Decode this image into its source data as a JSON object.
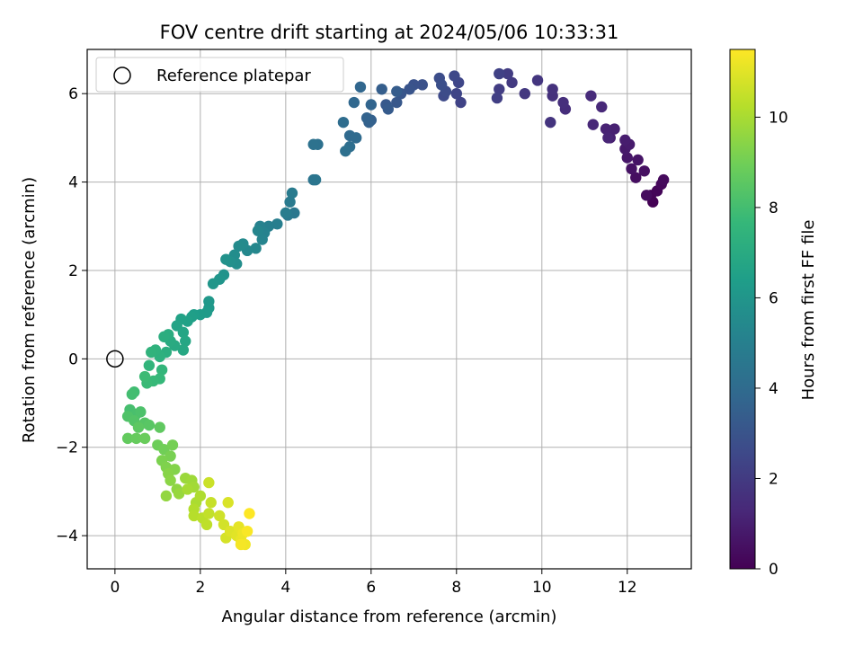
{
  "chart_data": {
    "type": "scatter",
    "title": "FOV centre drift starting at 2024/05/06 10:33:31",
    "xlabel": "Angular distance from reference (arcmin)",
    "ylabel": "Rotation from reference (arcmin)",
    "xlim": [
      -0.65,
      13.5
    ],
    "ylim": [
      -4.75,
      7.0
    ],
    "xticks": [
      0,
      2,
      4,
      6,
      8,
      10,
      12
    ],
    "yticks": [
      -4,
      -2,
      0,
      2,
      4,
      6
    ],
    "grid": true,
    "legend": {
      "placement": "top-left",
      "entries": [
        {
          "label": "Reference platepar",
          "marker": "open-circle"
        }
      ]
    },
    "reference_point": {
      "x": 0,
      "y": 0
    },
    "colorbar": {
      "label": "Hours from first FF file",
      "colormap": "viridis",
      "range": [
        0,
        11.5
      ],
      "ticks": [
        0,
        2,
        4,
        6,
        8,
        10
      ]
    },
    "colormap_stops": [
      "#440154",
      "#482878",
      "#3e4989",
      "#31688e",
      "#26828e",
      "#1f9e89",
      "#35b779",
      "#6ece58",
      "#b5de2b",
      "#fde725"
    ],
    "series": [
      {
        "points": [
          [
            12.6,
            3.55
          ],
          [
            12.55,
            3.7
          ],
          [
            12.7,
            3.8
          ],
          [
            12.8,
            3.95
          ],
          [
            12.85,
            4.05
          ],
          [
            12.45,
            3.7
          ],
          [
            12.2,
            4.1
          ],
          [
            12.4,
            4.25
          ],
          [
            12.1,
            4.3
          ],
          [
            12.25,
            4.5
          ],
          [
            12.0,
            4.55
          ],
          [
            11.95,
            4.75
          ],
          [
            12.05,
            4.85
          ],
          [
            11.95,
            4.95
          ],
          [
            11.6,
            5.0
          ],
          [
            11.7,
            5.2
          ],
          [
            11.5,
            5.2
          ],
          [
            11.55,
            5.0
          ],
          [
            11.2,
            5.3
          ],
          [
            11.4,
            5.7
          ],
          [
            11.15,
            5.95
          ],
          [
            10.55,
            5.65
          ],
          [
            10.5,
            5.8
          ],
          [
            10.25,
            5.95
          ],
          [
            10.25,
            6.1
          ],
          [
            10.2,
            5.35
          ],
          [
            9.9,
            6.3
          ],
          [
            9.6,
            6.0
          ],
          [
            9.3,
            6.25
          ],
          [
            9.2,
            6.45
          ],
          [
            9.0,
            6.1
          ],
          [
            8.95,
            5.9
          ],
          [
            9.0,
            6.45
          ],
          [
            8.1,
            5.8
          ],
          [
            8.0,
            6.0
          ],
          [
            8.05,
            6.25
          ],
          [
            7.95,
            6.4
          ],
          [
            7.7,
            5.95
          ],
          [
            7.75,
            6.05
          ],
          [
            7.6,
            6.35
          ],
          [
            7.65,
            6.2
          ],
          [
            7.2,
            6.2
          ],
          [
            7.0,
            6.2
          ],
          [
            6.9,
            6.1
          ],
          [
            6.7,
            6.0
          ],
          [
            6.6,
            5.8
          ],
          [
            6.35,
            5.75
          ],
          [
            6.4,
            5.65
          ],
          [
            6.6,
            6.05
          ],
          [
            6.25,
            6.1
          ],
          [
            6.0,
            5.4
          ],
          [
            5.95,
            5.35
          ],
          [
            5.9,
            5.45
          ],
          [
            6.0,
            5.75
          ],
          [
            5.75,
            6.15
          ],
          [
            5.6,
            5.8
          ],
          [
            5.5,
            5.05
          ],
          [
            5.65,
            5.0
          ],
          [
            5.35,
            5.35
          ],
          [
            5.5,
            4.8
          ],
          [
            5.4,
            4.7
          ],
          [
            4.75,
            4.85
          ],
          [
            4.65,
            4.85
          ],
          [
            4.65,
            4.05
          ],
          [
            4.7,
            4.05
          ],
          [
            4.2,
            3.3
          ],
          [
            4.05,
            3.25
          ],
          [
            4.1,
            3.55
          ],
          [
            4.15,
            3.75
          ],
          [
            4.0,
            3.3
          ],
          [
            3.8,
            3.05
          ],
          [
            3.6,
            3.0
          ],
          [
            3.4,
            3.0
          ],
          [
            3.5,
            2.85
          ],
          [
            3.45,
            2.7
          ],
          [
            3.35,
            2.9
          ],
          [
            3.3,
            2.5
          ],
          [
            3.1,
            2.45
          ],
          [
            3.0,
            2.6
          ],
          [
            2.9,
            2.55
          ],
          [
            2.8,
            2.35
          ],
          [
            2.85,
            2.15
          ],
          [
            2.7,
            2.2
          ],
          [
            2.6,
            2.25
          ],
          [
            2.55,
            1.9
          ],
          [
            2.45,
            1.8
          ],
          [
            2.3,
            1.7
          ],
          [
            2.2,
            1.3
          ],
          [
            2.2,
            1.15
          ],
          [
            2.15,
            1.05
          ],
          [
            2.0,
            1.0
          ],
          [
            1.85,
            1.0
          ],
          [
            1.8,
            0.95
          ],
          [
            1.7,
            0.85
          ],
          [
            1.55,
            0.9
          ],
          [
            1.45,
            0.75
          ],
          [
            1.6,
            0.6
          ],
          [
            1.65,
            0.4
          ],
          [
            1.6,
            0.2
          ],
          [
            1.4,
            0.3
          ],
          [
            1.3,
            0.4
          ],
          [
            1.25,
            0.55
          ],
          [
            1.15,
            0.5
          ],
          [
            1.2,
            0.15
          ],
          [
            1.05,
            0.05
          ],
          [
            0.95,
            0.2
          ],
          [
            0.85,
            0.15
          ],
          [
            0.8,
            -0.15
          ],
          [
            1.1,
            -0.25
          ],
          [
            1.05,
            -0.45
          ],
          [
            0.9,
            -0.5
          ],
          [
            0.75,
            -0.55
          ],
          [
            0.7,
            -0.4
          ],
          [
            0.45,
            -0.75
          ],
          [
            0.4,
            -0.8
          ],
          [
            0.35,
            -1.15
          ],
          [
            0.5,
            -1.25
          ],
          [
            0.6,
            -1.2
          ],
          [
            0.3,
            -1.3
          ],
          [
            0.45,
            -1.4
          ],
          [
            0.7,
            -1.45
          ],
          [
            0.8,
            -1.5
          ],
          [
            0.55,
            -1.55
          ],
          [
            1.05,
            -1.55
          ],
          [
            0.3,
            -1.8
          ],
          [
            0.5,
            -1.8
          ],
          [
            0.7,
            -1.8
          ],
          [
            1.0,
            -1.95
          ],
          [
            1.15,
            -2.05
          ],
          [
            1.35,
            -1.95
          ],
          [
            1.3,
            -2.2
          ],
          [
            1.1,
            -2.3
          ],
          [
            1.2,
            -2.45
          ],
          [
            1.4,
            -2.5
          ],
          [
            1.25,
            -2.6
          ],
          [
            1.3,
            -2.75
          ],
          [
            1.45,
            -2.95
          ],
          [
            1.2,
            -3.1
          ],
          [
            1.5,
            -3.05
          ],
          [
            1.65,
            -2.7
          ],
          [
            1.8,
            -2.75
          ],
          [
            1.85,
            -2.9
          ],
          [
            1.7,
            -2.95
          ],
          [
            1.9,
            -3.25
          ],
          [
            2.0,
            -3.1
          ],
          [
            1.85,
            -3.4
          ],
          [
            1.85,
            -3.55
          ],
          [
            2.05,
            -3.6
          ],
          [
            2.15,
            -3.75
          ],
          [
            2.2,
            -3.5
          ],
          [
            2.25,
            -3.25
          ],
          [
            2.2,
            -2.8
          ],
          [
            2.45,
            -3.55
          ],
          [
            2.55,
            -3.75
          ],
          [
            2.6,
            -4.05
          ],
          [
            2.65,
            -3.25
          ],
          [
            2.7,
            -3.9
          ],
          [
            2.85,
            -4.0
          ],
          [
            2.9,
            -3.8
          ],
          [
            2.95,
            -4.1
          ],
          [
            3.0,
            -3.95
          ],
          [
            3.05,
            -4.2
          ],
          [
            2.95,
            -4.2
          ],
          [
            3.1,
            -3.9
          ],
          [
            3.15,
            -3.5
          ]
        ]
      }
    ]
  }
}
